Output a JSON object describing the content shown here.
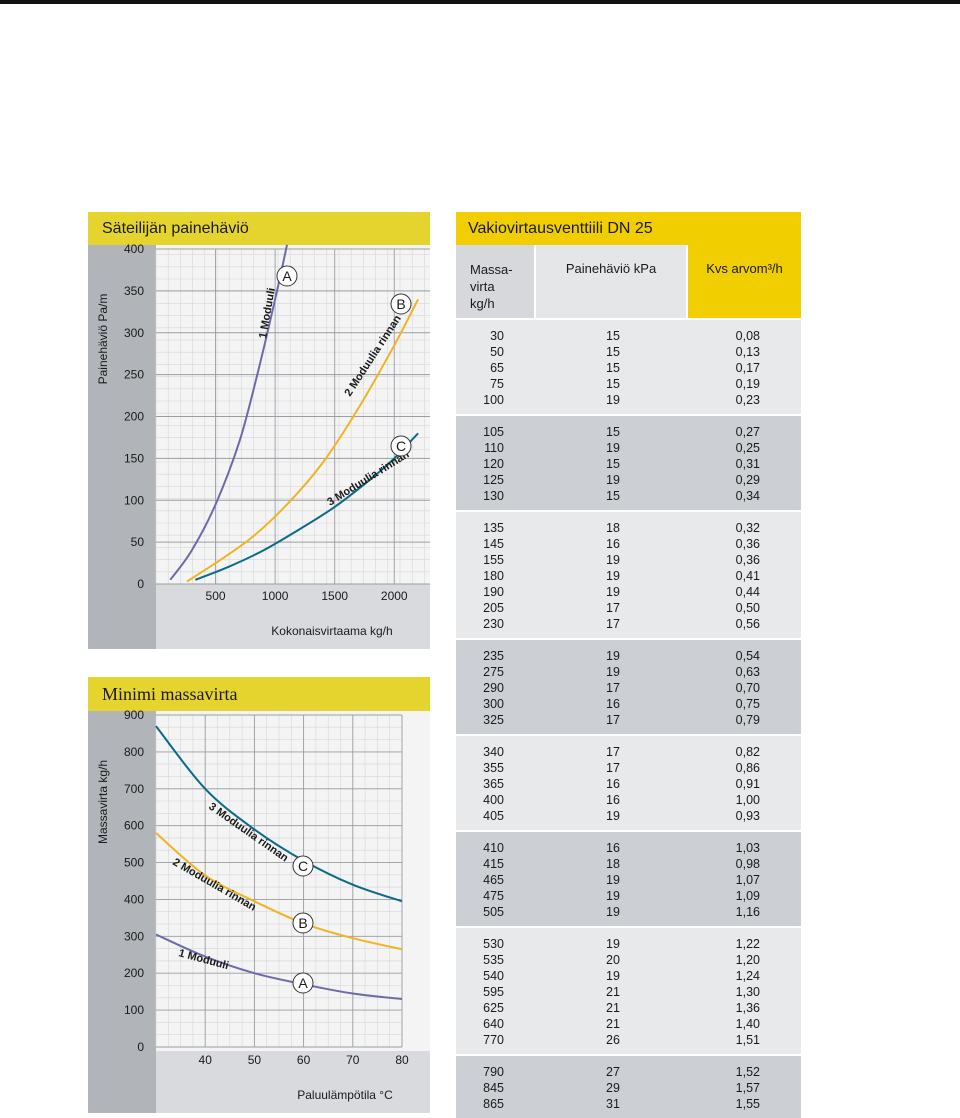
{
  "pressure_panel": {
    "title": "Säteilijän painehäviö",
    "ylabel": "Painehäviö Pa/m",
    "xlabel": "Kokonaisvirtaama kg/h",
    "y_ticks": [
      "400",
      "350",
      "300",
      "250",
      "200",
      "150",
      "100",
      "50",
      "0"
    ],
    "x_ticks": [
      "500",
      "1000",
      "1500",
      "2000"
    ],
    "curve_labels": [
      {
        "id": "A",
        "text": "1 Moduuli"
      },
      {
        "id": "B",
        "text": "2 Moduulia rinnan"
      },
      {
        "id": "C",
        "text": "3 Moduulia rinnan"
      }
    ]
  },
  "min_flow_panel": {
    "title": "Minimi massavirta",
    "ylabel": "Massavirta kg/h",
    "xlabel": "Paluulämpötila °C",
    "y_ticks": [
      "900",
      "800",
      "700",
      "600",
      "500",
      "400",
      "300",
      "200",
      "100",
      "0"
    ],
    "x_ticks": [
      "40",
      "50",
      "60",
      "70",
      "80"
    ],
    "curve_labels": [
      {
        "id": "A",
        "text": "1 Moduuli"
      },
      {
        "id": "B",
        "text": "2 Moduulia rinnan"
      },
      {
        "id": "C",
        "text": "3 Moduulia rinnan"
      }
    ]
  },
  "valve_table": {
    "title": "Vakiovirtausventtiili DN 25",
    "col_mass": [
      "Massa-",
      "virta",
      "kg/h"
    ],
    "col_pressure": "Painehäviö kPa",
    "col_kvs": "Kvs arvom³/h",
    "groups": [
      [
        [
          "30",
          "15",
          "0,08"
        ],
        [
          "50",
          "15",
          "0,13"
        ],
        [
          "65",
          "15",
          "0,17"
        ],
        [
          "75",
          "15",
          "0,19"
        ],
        [
          "100",
          "19",
          "0,23"
        ]
      ],
      [
        [
          "105",
          "15",
          "0,27"
        ],
        [
          "110",
          "19",
          "0,25"
        ],
        [
          "120",
          "15",
          "0,31"
        ],
        [
          "125",
          "19",
          "0,29"
        ],
        [
          "130",
          "15",
          "0,34"
        ]
      ],
      [
        [
          "135",
          "18",
          "0,32"
        ],
        [
          "145",
          "16",
          "0,36"
        ],
        [
          "155",
          "19",
          "0,36"
        ],
        [
          "180",
          "19",
          "0,41"
        ],
        [
          "190",
          "19",
          "0,44"
        ],
        [
          "205",
          "17",
          "0,50"
        ],
        [
          "230",
          "17",
          "0,56"
        ]
      ],
      [
        [
          "235",
          "19",
          "0,54"
        ],
        [
          "275",
          "19",
          "0,63"
        ],
        [
          "290",
          "17",
          "0,70"
        ],
        [
          "300",
          "16",
          "0,75"
        ],
        [
          "325",
          "17",
          "0,79"
        ]
      ],
      [
        [
          "340",
          "17",
          "0,82"
        ],
        [
          "355",
          "17",
          "0,86"
        ],
        [
          "365",
          "16",
          "0,91"
        ],
        [
          "400",
          "16",
          "1,00"
        ],
        [
          "405",
          "19",
          "0,93"
        ]
      ],
      [
        [
          "410",
          "16",
          "1,03"
        ],
        [
          "415",
          "18",
          "0,98"
        ],
        [
          "465",
          "19",
          "1,07"
        ],
        [
          "475",
          "19",
          "1,09"
        ],
        [
          "505",
          "19",
          "1,16"
        ]
      ],
      [
        [
          "530",
          "19",
          "1,22"
        ],
        [
          "535",
          "20",
          "1,20"
        ],
        [
          "540",
          "19",
          "1,24"
        ],
        [
          "595",
          "21",
          "1,30"
        ],
        [
          "625",
          "21",
          "1,36"
        ],
        [
          "640",
          "21",
          "1,40"
        ],
        [
          "770",
          "26",
          "1,51"
        ]
      ],
      [
        [
          "790",
          "27",
          "1,52"
        ],
        [
          "845",
          "29",
          "1,57"
        ],
        [
          "865",
          "31",
          "1,55"
        ]
      ]
    ]
  },
  "chart_data": [
    {
      "type": "line",
      "title": "Säteilijän painehäviö",
      "xlabel": "Kokonaisvirtaama kg/h",
      "ylabel": "Painehäviö Pa/m",
      "xlim": [
        0,
        2300
      ],
      "ylim": [
        0,
        400
      ],
      "grid": true,
      "series": [
        {
          "name": "1 Moduuli",
          "label": "A",
          "color": "#6c6aa8",
          "x": [
            120,
            300,
            500,
            700,
            850,
            1000,
            1100
          ],
          "y": [
            5,
            40,
            95,
            170,
            250,
            340,
            405
          ]
        },
        {
          "name": "2 Moduulia rinnan",
          "label": "B",
          "color": "#f0b323",
          "x": [
            260,
            500,
            800,
            1100,
            1400,
            1700,
            2000,
            2200
          ],
          "y": [
            3,
            25,
            55,
            95,
            145,
            210,
            285,
            340
          ]
        },
        {
          "name": "3 Moduulia rinnan",
          "label": "C",
          "color": "#0c6a86",
          "x": [
            330,
            600,
            900,
            1200,
            1500,
            1800,
            2000,
            2200
          ],
          "y": [
            5,
            20,
            40,
            65,
            92,
            125,
            150,
            180
          ]
        }
      ]
    },
    {
      "type": "line",
      "title": "Minimi massavirta",
      "xlabel": "Paluulämpötila °C",
      "ylabel": "Massavirta kg/h",
      "xlim": [
        30,
        80
      ],
      "ylim": [
        0,
        900
      ],
      "grid": true,
      "series": [
        {
          "name": "1 Moduuli",
          "label": "A",
          "color": "#6c6aa8",
          "x": [
            30,
            40,
            50,
            60,
            70,
            80
          ],
          "y": [
            305,
            245,
            200,
            170,
            145,
            130
          ]
        },
        {
          "name": "2 Moduulia rinnan",
          "label": "B",
          "color": "#f0b323",
          "x": [
            30,
            40,
            50,
            60,
            70,
            80
          ],
          "y": [
            580,
            465,
            395,
            335,
            295,
            265
          ]
        },
        {
          "name": "3 Moduulia rinnan",
          "label": "C",
          "color": "#0c6a86",
          "x": [
            30,
            40,
            50,
            60,
            70,
            80
          ],
          "y": [
            870,
            700,
            590,
            505,
            440,
            395
          ]
        }
      ]
    }
  ]
}
